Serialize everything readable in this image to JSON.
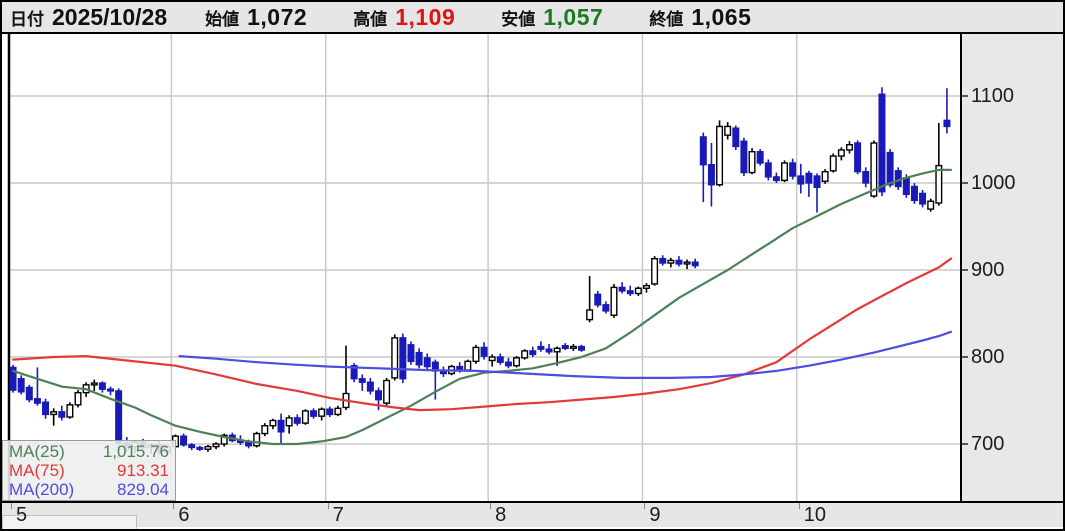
{
  "header": {
    "date_label": "日付",
    "date": "2025/10/28",
    "open_label": "始値",
    "open": "1,072",
    "high_label": "高値",
    "high": "1,109",
    "low_label": "安値",
    "low": "1,057",
    "close_label": "終値",
    "close": "1,065"
  },
  "legend": [
    {
      "label": "MA(25)",
      "value": "1,015.76",
      "color": "#4d8157"
    },
    {
      "label": "MA(75)",
      "value": "913.31",
      "color": "#e03a3a"
    },
    {
      "label": "MA(200)",
      "value": "829.04",
      "color": "#4d4de0"
    }
  ],
  "colors": {
    "bull_fill": "#ffffff",
    "bull_stroke": "#000000",
    "bear_fill": "#1a1ab8",
    "bear_stroke": "#1a1ab8",
    "grid": "#c9c9c9",
    "axis_line": "#000000",
    "panel_bg": "#e6e6e6",
    "high_text": "#dd1414",
    "low_text": "#1e7a1e",
    "ma25": "#4d8157",
    "ma75": "#e03a3a",
    "ma200": "#4d4de0"
  },
  "chart_data": {
    "type": "candlestick",
    "title": "",
    "x_axis": {
      "labels": [
        "5",
        "6",
        "7",
        "8",
        "9",
        "10"
      ],
      "boundaries": [
        0,
        20,
        39,
        59,
        78,
        97
      ]
    },
    "y_axis": {
      "ticks": [
        700,
        800,
        900,
        1000,
        1100
      ],
      "range": [
        632,
        1171
      ]
    },
    "grid": true,
    "candles_format": [
      "open",
      "high",
      "low",
      "close"
    ],
    "candles": [
      [
        788,
        791,
        759,
        762
      ],
      [
        775,
        779,
        757,
        760
      ],
      [
        765,
        768,
        748,
        751
      ],
      [
        752,
        788,
        744,
        747
      ],
      [
        748,
        752,
        729,
        734
      ],
      [
        734,
        741,
        721,
        737
      ],
      [
        737,
        744,
        727,
        731
      ],
      [
        731,
        748,
        729,
        745
      ],
      [
        745,
        762,
        742,
        759
      ],
      [
        759,
        771,
        754,
        768
      ],
      [
        768,
        774,
        761,
        770
      ],
      [
        770,
        772,
        759,
        763
      ],
      [
        763,
        766,
        756,
        761
      ],
      [
        761,
        764,
        684,
        701
      ],
      [
        701,
        708,
        691,
        697
      ],
      [
        697,
        704,
        689,
        702
      ],
      [
        702,
        706,
        694,
        696
      ],
      [
        696,
        701,
        689,
        699
      ],
      [
        699,
        703,
        687,
        691
      ],
      [
        691,
        699,
        688,
        697
      ],
      [
        697,
        711,
        695,
        709
      ],
      [
        709,
        712,
        697,
        699
      ],
      [
        699,
        701,
        693,
        696
      ],
      [
        696,
        698,
        692,
        694
      ],
      [
        694,
        699,
        691,
        697
      ],
      [
        697,
        702,
        694,
        700
      ],
      [
        700,
        712,
        697,
        710
      ],
      [
        710,
        713,
        702,
        704
      ],
      [
        704,
        710,
        699,
        702
      ],
      [
        702,
        705,
        695,
        698
      ],
      [
        698,
        714,
        696,
        712
      ],
      [
        712,
        724,
        709,
        721
      ],
      [
        721,
        729,
        717,
        727
      ],
      [
        727,
        735,
        701,
        714
      ],
      [
        721,
        733,
        712,
        730
      ],
      [
        730,
        734,
        721,
        724
      ],
      [
        724,
        740,
        722,
        738
      ],
      [
        738,
        741,
        729,
        732
      ],
      [
        732,
        742,
        727,
        740
      ],
      [
        740,
        743,
        731,
        734
      ],
      [
        734,
        744,
        732,
        741
      ],
      [
        742,
        813,
        739,
        758
      ],
      [
        790,
        793,
        771,
        775
      ],
      [
        775,
        780,
        761,
        771
      ],
      [
        771,
        776,
        757,
        761
      ],
      [
        761,
        765,
        739,
        751
      ],
      [
        747,
        776,
        744,
        773
      ],
      [
        776,
        826,
        773,
        822
      ],
      [
        822,
        827,
        770,
        775
      ],
      [
        814,
        818,
        791,
        795
      ],
      [
        805,
        810,
        787,
        791
      ],
      [
        799,
        804,
        785,
        789
      ],
      [
        794,
        797,
        751,
        784
      ],
      [
        784,
        789,
        777,
        781
      ],
      [
        781,
        791,
        779,
        789
      ],
      [
        789,
        794,
        782,
        785
      ],
      [
        785,
        797,
        783,
        795
      ],
      [
        795,
        814,
        792,
        811
      ],
      [
        811,
        817,
        797,
        801
      ],
      [
        796,
        803,
        789,
        800
      ],
      [
        800,
        804,
        791,
        794
      ],
      [
        794,
        799,
        787,
        790
      ],
      [
        790,
        801,
        788,
        799
      ],
      [
        799,
        809,
        797,
        807
      ],
      [
        807,
        812,
        800,
        803
      ],
      [
        812,
        818,
        806,
        809
      ],
      [
        809,
        815,
        803,
        806
      ],
      [
        806,
        812,
        790,
        810
      ],
      [
        813,
        816,
        808,
        810
      ],
      [
        810,
        815,
        807,
        812
      ],
      [
        812,
        814,
        806,
        808
      ],
      [
        843,
        893,
        840,
        854
      ],
      [
        872,
        876,
        857,
        860
      ],
      [
        860,
        864,
        850,
        853
      ],
      [
        848,
        884,
        845,
        880
      ],
      [
        880,
        886,
        873,
        876
      ],
      [
        876,
        882,
        870,
        873
      ],
      [
        873,
        881,
        870,
        879
      ],
      [
        879,
        885,
        874,
        882
      ],
      [
        884,
        916,
        882,
        913
      ],
      [
        913,
        917,
        905,
        908
      ],
      [
        908,
        914,
        903,
        911
      ],
      [
        911,
        916,
        904,
        907
      ],
      [
        907,
        912,
        901,
        909
      ],
      [
        909,
        913,
        902,
        905
      ],
      [
        1053,
        1058,
        978,
        1021
      ],
      [
        1021,
        1046,
        973,
        998
      ],
      [
        998,
        1072,
        996,
        1065
      ],
      [
        1055,
        1070,
        1050,
        1065
      ],
      [
        1063,
        1066,
        1038,
        1042
      ],
      [
        1048,
        1052,
        1008,
        1012
      ],
      [
        1012,
        1040,
        1010,
        1036
      ],
      [
        1036,
        1039,
        1020,
        1023
      ],
      [
        1023,
        1027,
        1003,
        1007
      ],
      [
        1007,
        1012,
        1000,
        1003
      ],
      [
        1003,
        1026,
        1001,
        1023
      ],
      [
        1023,
        1028,
        1004,
        1008
      ],
      [
        1008,
        1022,
        988,
        999
      ],
      [
        1011,
        1014,
        984,
        1000
      ],
      [
        1008,
        1011,
        966,
        995
      ],
      [
        1002,
        1016,
        999,
        1013
      ],
      [
        1014,
        1034,
        1012,
        1031
      ],
      [
        1031,
        1041,
        1026,
        1038
      ],
      [
        1038,
        1048,
        1034,
        1044
      ],
      [
        1046,
        1049,
        1010,
        1013
      ],
      [
        1013,
        1018,
        995,
        1000
      ],
      [
        985,
        1049,
        983,
        1046
      ],
      [
        1102,
        1110,
        985,
        990
      ],
      [
        1035,
        1039,
        995,
        998
      ],
      [
        1014,
        1018,
        992,
        996
      ],
      [
        1006,
        1010,
        983,
        987
      ],
      [
        996,
        1000,
        976,
        980
      ],
      [
        988,
        992,
        972,
        976
      ],
      [
        970,
        982,
        967,
        979
      ],
      [
        977,
        1069,
        974,
        1020
      ],
      [
        1072,
        1109,
        1057,
        1065
      ]
    ],
    "series": [
      {
        "name": "MA(25)",
        "color": "#4d8157",
        "points": [
          [
            0,
            784
          ],
          [
            3,
            775
          ],
          [
            6,
            766
          ],
          [
            9,
            763
          ],
          [
            12,
            752
          ],
          [
            15,
            742
          ],
          [
            17,
            733
          ],
          [
            20,
            721
          ],
          [
            23,
            714
          ],
          [
            26,
            708
          ],
          [
            29,
            703
          ],
          [
            32,
            700
          ],
          [
            35,
            700
          ],
          [
            38,
            703
          ],
          [
            41,
            708
          ],
          [
            43,
            716
          ],
          [
            46,
            730
          ],
          [
            49,
            744
          ],
          [
            52,
            760
          ],
          [
            55,
            775
          ],
          [
            58,
            782
          ],
          [
            61,
            784
          ],
          [
            64,
            787
          ],
          [
            67,
            793
          ],
          [
            70,
            800
          ],
          [
            73,
            810
          ],
          [
            76,
            828
          ],
          [
            79,
            848
          ],
          [
            82,
            868
          ],
          [
            85,
            884
          ],
          [
            88,
            900
          ],
          [
            91,
            918
          ],
          [
            93,
            930
          ],
          [
            96,
            948
          ],
          [
            99,
            962
          ],
          [
            102,
            976
          ],
          [
            105,
            988
          ],
          [
            108,
            1000
          ],
          [
            110,
            1006
          ],
          [
            112,
            1011
          ],
          [
            114,
            1015
          ],
          [
            115.5,
            1015
          ]
        ]
      },
      {
        "name": "MA(75)",
        "color": "#e03a3a",
        "points": [
          [
            0,
            797
          ],
          [
            5,
            800
          ],
          [
            9,
            801
          ],
          [
            14,
            796
          ],
          [
            20,
            790
          ],
          [
            25,
            780
          ],
          [
            30,
            769
          ],
          [
            35,
            761
          ],
          [
            39,
            753
          ],
          [
            43,
            747
          ],
          [
            47,
            742
          ],
          [
            50,
            739
          ],
          [
            54,
            740
          ],
          [
            58,
            743
          ],
          [
            62,
            746
          ],
          [
            66,
            748
          ],
          [
            70,
            751
          ],
          [
            74,
            754
          ],
          [
            78,
            758
          ],
          [
            82,
            763
          ],
          [
            86,
            770
          ],
          [
            90,
            780
          ],
          [
            94,
            794
          ],
          [
            98,
            820
          ],
          [
            104,
            855
          ],
          [
            110,
            885
          ],
          [
            114,
            903
          ],
          [
            115.5,
            913
          ]
        ]
      },
      {
        "name": "MA(200)",
        "color": "#4d4de0",
        "points": [
          [
            20.5,
            801
          ],
          [
            25,
            798
          ],
          [
            30,
            794
          ],
          [
            35,
            791
          ],
          [
            39,
            789
          ],
          [
            45,
            787
          ],
          [
            51,
            785
          ],
          [
            57,
            784
          ],
          [
            63,
            781
          ],
          [
            69,
            778
          ],
          [
            75,
            776
          ],
          [
            81,
            776
          ],
          [
            86,
            777
          ],
          [
            90,
            780
          ],
          [
            94,
            784
          ],
          [
            98,
            790
          ],
          [
            102,
            797
          ],
          [
            106,
            805
          ],
          [
            109,
            812
          ],
          [
            112,
            819
          ],
          [
            114,
            824
          ],
          [
            115.5,
            829
          ]
        ]
      }
    ]
  }
}
